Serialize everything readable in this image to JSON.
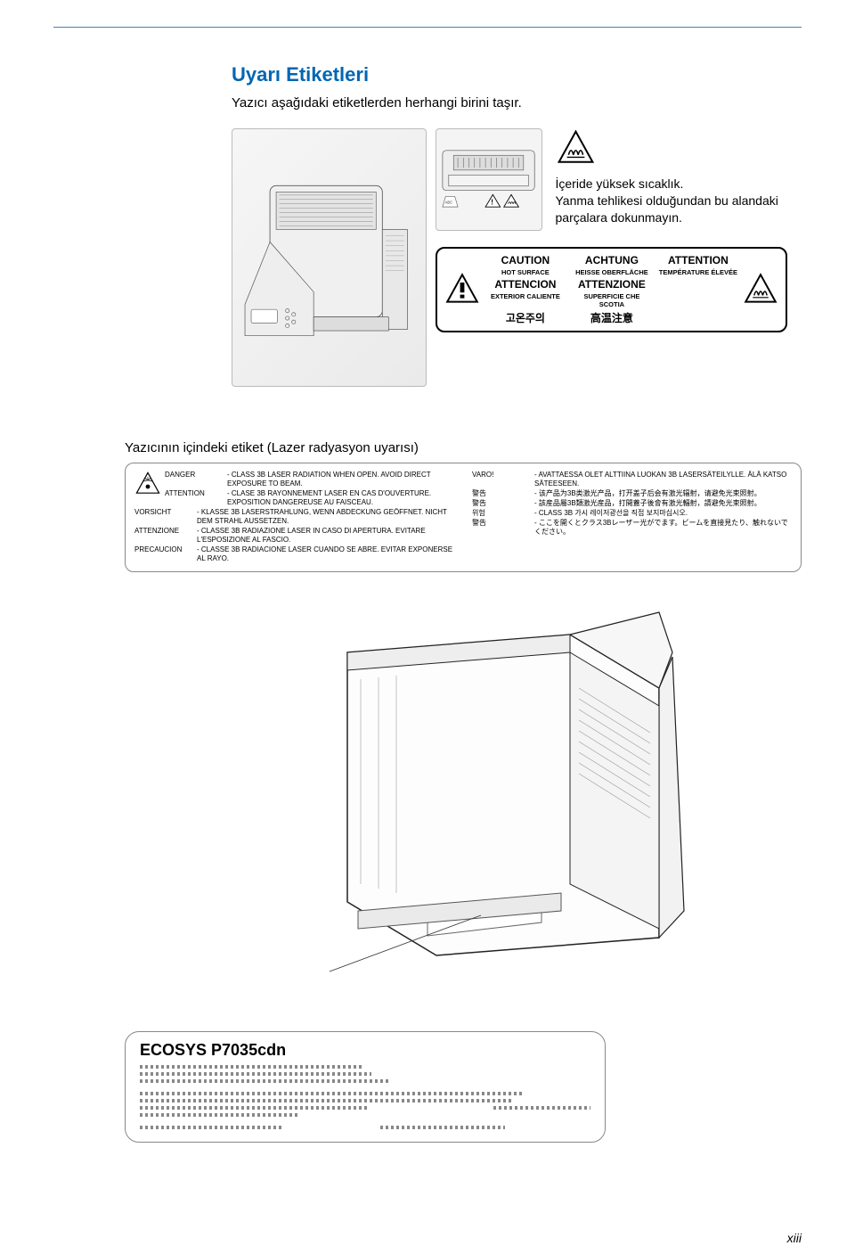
{
  "page": {
    "title": "Uyarı Etiketleri",
    "subtitle": "Yazıcı aşağıdaki etiketlerden herhangi birini taşır.",
    "number": "xiii"
  },
  "heat_warning": {
    "line1": "İçeride yüksek sıcaklık.",
    "line2": "Yanma tehlikesi olduğundan bu alandaki parçalara dokunmayın."
  },
  "caution_label": {
    "en_title": "CAUTION",
    "en_sub": "HOT SURFACE",
    "de_title": "ACHTUNG",
    "de_sub": "HEISSE OBERFLÄCHE",
    "fr_title": "ATTENTION",
    "fr_sub": "TEMPÉRATURE ÉLEVÉE",
    "es_title": "ATTENCION",
    "es_sub": "EXTERIOR CALIENTE",
    "it_title": "ATTENZIONE",
    "it_sub": "SUPERFICIE CHE SCOTIA",
    "kr": "고온주의",
    "jp": "高温注意"
  },
  "laser": {
    "heading": "Yazıcının içindeki etiket (Lazer radyasyon uyarısı)",
    "left": [
      {
        "lang": "DANGER",
        "text": "- CLASS 3B LASER RADIATION WHEN OPEN. AVOID DIRECT EXPOSURE TO BEAM."
      },
      {
        "lang": "ATTENTION",
        "text": "- CLASE 3B RAYONNEMENT LASER EN CAS D'OUVERTURE. EXPOSITION DANGEREUSE AU FAISCEAU."
      },
      {
        "lang": "VORSICHT",
        "text": "- KLASSE 3B LASERSTRAHLUNG, WENN ABDECKUNG GEÖFFNET. NICHT DEM STRAHL AUSSETZEN."
      },
      {
        "lang": "ATTENZIONE",
        "text": "- CLASSE 3B RADIAZIONE LASER IN CASO DI APERTURA. EVITARE L'ESPOSIZIONE AL FASCIO."
      },
      {
        "lang": "PRECAUCION",
        "text": "- CLASSE 3B RADIACIONE LASER CUANDO SE ABRE. EVITAR EXPONERSE AL RAYO."
      }
    ],
    "right": [
      {
        "lang": "VARO!",
        "text": "- AVATTAESSA OLET ALTTIINA LUOKAN 3B LASERSÄTEILYLLE. ÄLÄ KATSO SÄTEESEEN."
      },
      {
        "lang": "警告",
        "text": "- 该产品为3B类激光产品，打开盖子后会有激光辐射，请避免光束照射。"
      },
      {
        "lang": "警告",
        "text": "- 該産品屬3B類激光産品，打開蓋子後會有激光輻射，請避免光束照射。"
      },
      {
        "lang": "위험",
        "text": "- CLASS 3B 가시 레이저광선을 직접 보지마십시오."
      },
      {
        "lang": "警告",
        "text": "- ここを開くとクラス3Bレーザー光がでます。ビームを直接見たり、触れないでください。"
      }
    ]
  },
  "model": {
    "name": "ECOSYS P7035cdn"
  },
  "colors": {
    "title": "#0066b3",
    "rule": "#4a7fb8",
    "text": "#000000",
    "border": "#888888"
  }
}
